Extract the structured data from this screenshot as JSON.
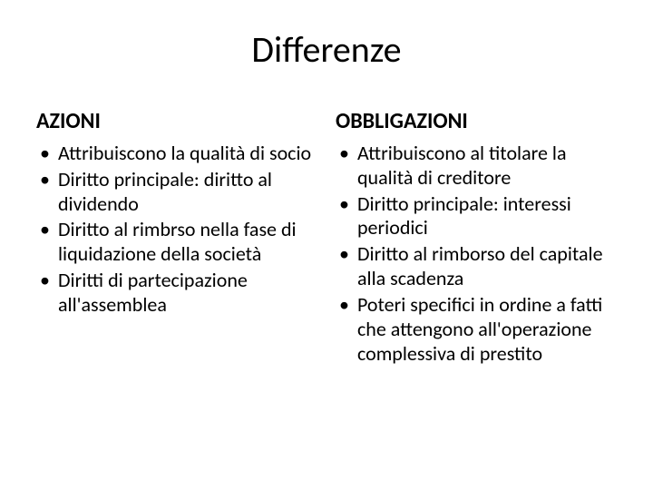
{
  "title": "Differenze",
  "left": {
    "heading": "AZIONI",
    "items": [
      "Attribuiscono la qualità di socio",
      "Diritto principale: diritto al dividendo",
      "Diritto al rimbrso nella fase di liquidazione della società",
      "Diritti di partecipazione all'assemblea"
    ]
  },
  "right": {
    "heading": "OBBLIGAZIONI",
    "items": [
      "Attribuiscono al titolare la qualità di creditore",
      "Diritto principale: interessi periodici",
      "Diritto al rimborso del capitale alla scadenza",
      "Poteri specifici in ordine a fatti che attengono all'operazione complessiva di prestito"
    ]
  },
  "styling": {
    "background_color": "#ffffff",
    "text_color": "#000000",
    "title_fontsize": 40,
    "heading_fontsize": 24,
    "body_fontsize": 22,
    "font_family": "Calibri"
  }
}
